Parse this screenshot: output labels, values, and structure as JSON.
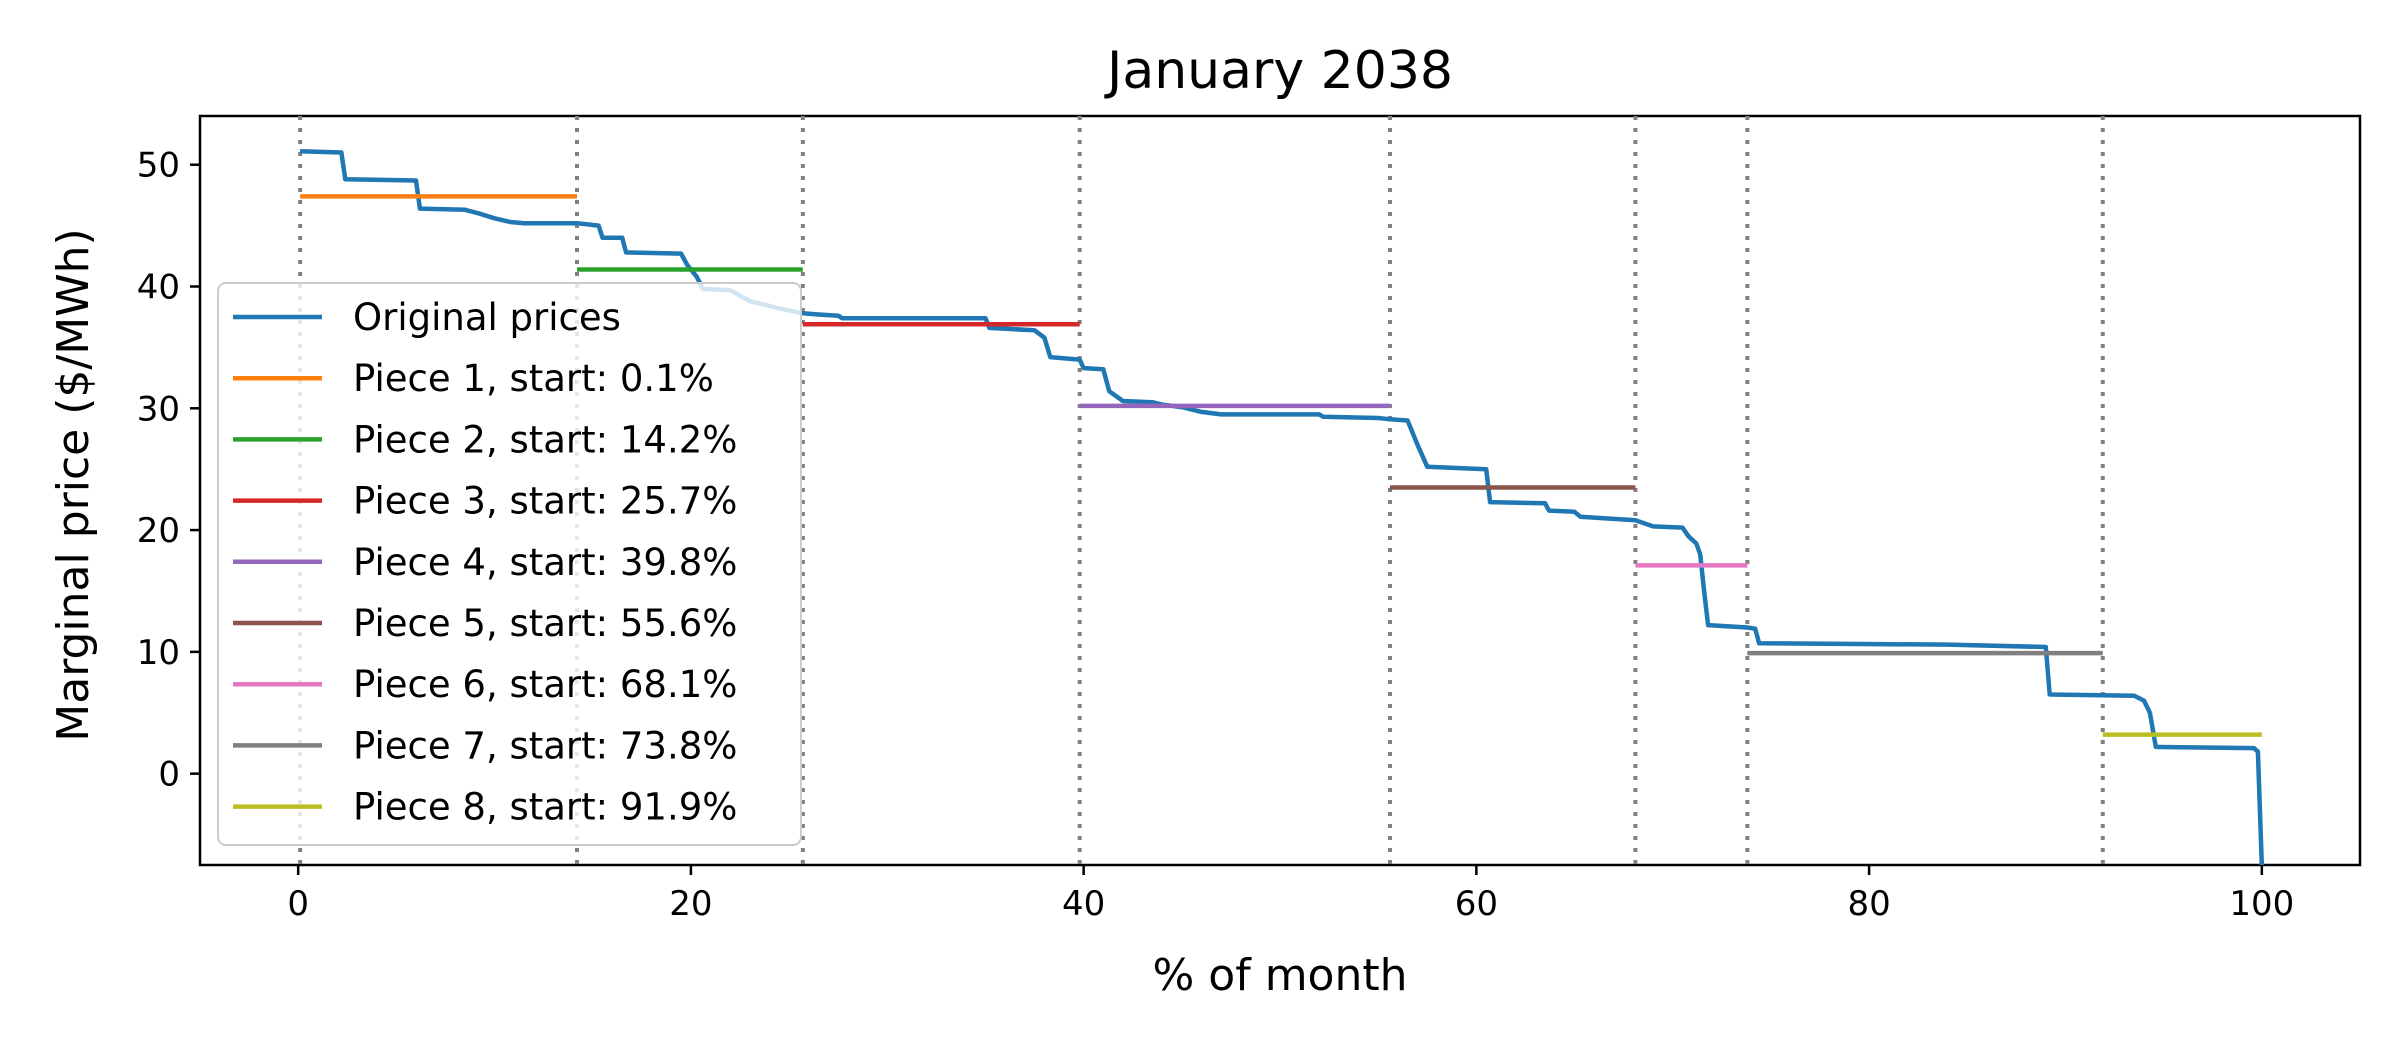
{
  "chart_data": {
    "type": "line",
    "title": "January 2038",
    "xlabel": "% of month",
    "ylabel": "Marginal price ($/MWh)",
    "xlim": [
      -5,
      105
    ],
    "ylim": [
      -7.5,
      54
    ],
    "xticks": [
      0,
      20,
      40,
      60,
      80,
      100
    ],
    "yticks": [
      0,
      10,
      20,
      30,
      40,
      50
    ],
    "grid": false,
    "legend_position": "center-left",
    "boundaries": [
      0.1,
      14.2,
      25.7,
      39.8,
      55.6,
      68.1,
      73.8,
      91.9
    ],
    "boundary_color": "#808080",
    "original": {
      "name": "Original prices",
      "color": "#1f77b4",
      "points": [
        [
          0.1,
          51.1
        ],
        [
          2.2,
          51.0
        ],
        [
          2.4,
          48.8
        ],
        [
          6.0,
          48.7
        ],
        [
          6.2,
          46.4
        ],
        [
          8.5,
          46.3
        ],
        [
          9.2,
          46.0
        ],
        [
          10.0,
          45.6
        ],
        [
          10.8,
          45.3
        ],
        [
          11.5,
          45.2
        ],
        [
          14.2,
          45.2
        ],
        [
          15.3,
          45.0
        ],
        [
          15.5,
          44.0
        ],
        [
          16.5,
          44.0
        ],
        [
          16.7,
          42.8
        ],
        [
          19.5,
          42.7
        ],
        [
          19.8,
          41.8
        ],
        [
          20.3,
          40.8
        ],
        [
          20.6,
          39.8
        ],
        [
          22.0,
          39.7
        ],
        [
          23.0,
          38.8
        ],
        [
          24.5,
          38.2
        ],
        [
          25.7,
          37.8
        ],
        [
          26.5,
          37.7
        ],
        [
          27.5,
          37.6
        ],
        [
          27.7,
          37.4
        ],
        [
          35.0,
          37.4
        ],
        [
          35.2,
          36.6
        ],
        [
          37.5,
          36.4
        ],
        [
          38.0,
          35.8
        ],
        [
          38.3,
          34.2
        ],
        [
          39.8,
          34.0
        ],
        [
          40.0,
          33.3
        ],
        [
          41.0,
          33.2
        ],
        [
          41.3,
          31.4
        ],
        [
          42.0,
          30.6
        ],
        [
          43.5,
          30.5
        ],
        [
          44.0,
          30.3
        ],
        [
          45.0,
          30.1
        ],
        [
          46.0,
          29.7
        ],
        [
          47.0,
          29.5
        ],
        [
          52.0,
          29.5
        ],
        [
          52.2,
          29.3
        ],
        [
          55.0,
          29.2
        ],
        [
          55.6,
          29.1
        ],
        [
          56.5,
          29.0
        ],
        [
          57.0,
          27.0
        ],
        [
          57.5,
          25.2
        ],
        [
          60.5,
          25.0
        ],
        [
          60.7,
          22.3
        ],
        [
          63.5,
          22.2
        ],
        [
          63.7,
          21.6
        ],
        [
          65.0,
          21.5
        ],
        [
          65.3,
          21.1
        ],
        [
          68.1,
          20.8
        ],
        [
          69.0,
          20.3
        ],
        [
          70.5,
          20.2
        ],
        [
          70.8,
          19.5
        ],
        [
          71.2,
          18.9
        ],
        [
          71.4,
          18.0
        ],
        [
          71.6,
          15.0
        ],
        [
          71.8,
          12.2
        ],
        [
          73.8,
          12.0
        ],
        [
          74.2,
          11.9
        ],
        [
          74.4,
          10.7
        ],
        [
          84.0,
          10.6
        ],
        [
          89.0,
          10.4
        ],
        [
          89.2,
          6.5
        ],
        [
          93.5,
          6.4
        ],
        [
          94.0,
          6.0
        ],
        [
          94.3,
          5.0
        ],
        [
          94.6,
          2.2
        ],
        [
          99.6,
          2.1
        ],
        [
          99.8,
          1.8
        ],
        [
          100.0,
          -7.5
        ]
      ]
    },
    "series": [
      {
        "name": "Piece 1, start: 0.1%",
        "color": "#ff7f0e",
        "x_start": 0.1,
        "x_end": 14.2,
        "value": 47.4
      },
      {
        "name": "Piece 2, start: 14.2%",
        "color": "#2ca02c",
        "x_start": 14.2,
        "x_end": 25.7,
        "value": 41.4
      },
      {
        "name": "Piece 3, start: 25.7%",
        "color": "#d62728",
        "x_start": 25.7,
        "x_end": 39.8,
        "value": 36.9
      },
      {
        "name": "Piece 4, start: 39.8%",
        "color": "#9467bd",
        "x_start": 39.8,
        "x_end": 55.6,
        "value": 30.2
      },
      {
        "name": "Piece 5, start: 55.6%",
        "color": "#8c564b",
        "x_start": 55.6,
        "x_end": 68.1,
        "value": 23.5
      },
      {
        "name": "Piece 6, start: 68.1%",
        "color": "#e377c2",
        "x_start": 68.1,
        "x_end": 73.8,
        "value": 17.1
      },
      {
        "name": "Piece 7, start: 73.8%",
        "color": "#7f7f7f",
        "x_start": 73.8,
        "x_end": 91.9,
        "value": 9.9
      },
      {
        "name": "Piece 8, start: 91.9%",
        "color": "#bcbd22",
        "x_start": 91.9,
        "x_end": 100.0,
        "value": 3.2
      }
    ]
  }
}
